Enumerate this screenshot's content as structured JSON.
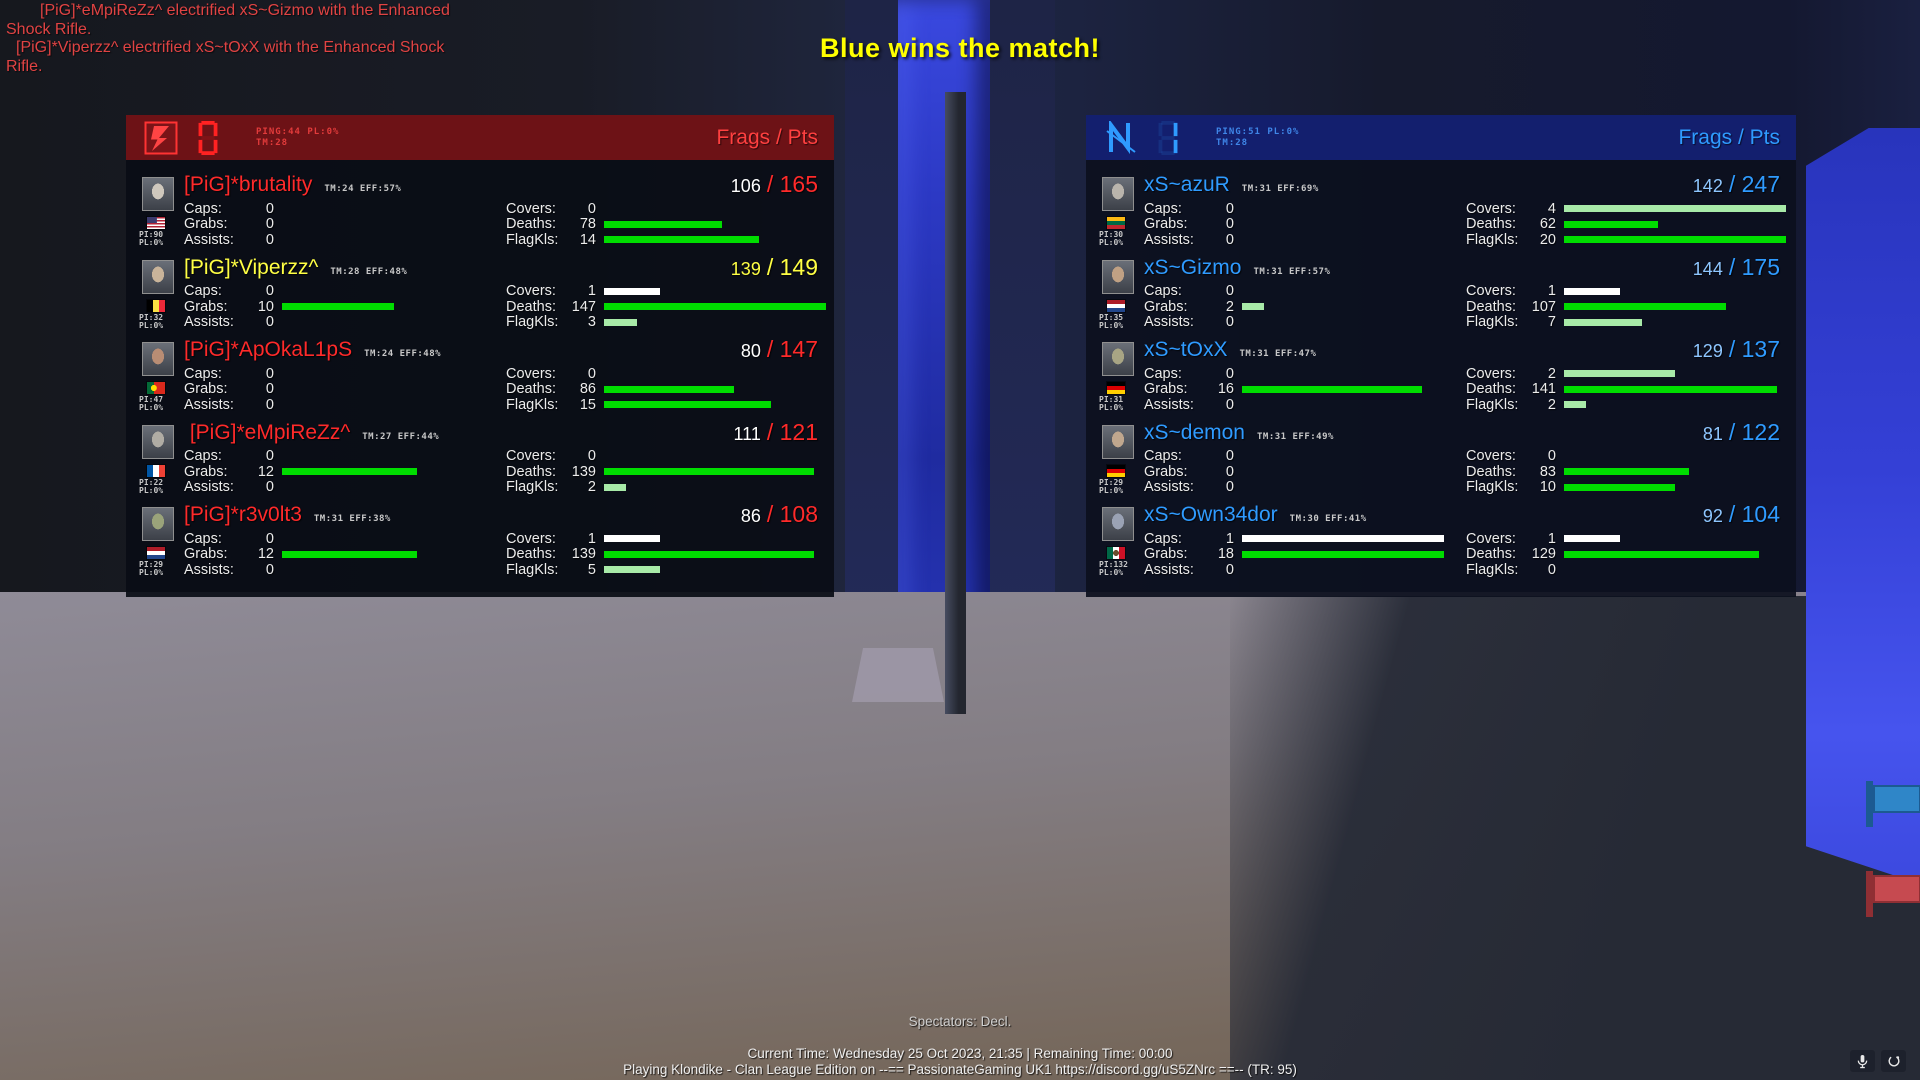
{
  "killfeed": {
    "line1": "[PiG]*eMpiReZz^ electrified xS~Gizmo with the Enhanced Shock Rifle.",
    "line2": "[PiG]*Viperzz^ electrified xS~tOxX with the Enhanced Shock Rifle."
  },
  "announcement": "Blue wins the match!",
  "labels": {
    "frags_pts": "Frags / Pts",
    "caps": "Caps:",
    "grabs": "Grabs:",
    "assists": "Assists:",
    "covers": "Covers:",
    "deaths": "Deaths:",
    "flagkls": "FlagKls:"
  },
  "stat_maxes": {
    "caps": 1,
    "grabs": 18,
    "assists": 1,
    "covers": 4,
    "deaths": 147,
    "flagkls": 20
  },
  "bar_colors": {
    "low": "#ffffff",
    "mid": "#a8eaa8",
    "high": "#00dd00"
  },
  "teams": [
    {
      "id": "red",
      "accent": "#ff2222",
      "digit": "0",
      "ping": "PING:44 PL:0%",
      "tm": "TM:28",
      "players": [
        {
          "name": "[PiG]*brutality",
          "name_color": "#ff2a2a",
          "tm_eff": "TM:24 EFF:57%",
          "pi": "PI:90",
          "pl": "PL:0%",
          "flag": "us",
          "avatar_tint": "#cfc8bd",
          "frags": "106",
          "pts": "165",
          "frags_color": "#ffffff",
          "pts_color": "#ff2a2a",
          "caps": 0,
          "grabs": 0,
          "assists": 0,
          "covers": 0,
          "deaths": 78,
          "flagkls": 14
        },
        {
          "name": "[PiG]*Viperzz^",
          "name_color": "#ffff44",
          "tm_eff": "TM:28 EFF:48%",
          "pi": "PI:32",
          "pl": "PL:0%",
          "flag": "be",
          "avatar_tint": "#c9b49a",
          "frags": "139",
          "pts": "149",
          "frags_color": "#ffff44",
          "pts_color": "#ffff44",
          "caps": 0,
          "grabs": 10,
          "assists": 0,
          "covers": 1,
          "deaths": 147,
          "flagkls": 3
        },
        {
          "name": "[PiG]*ApOkaL1pS",
          "name_color": "#ff2a2a",
          "tm_eff": "TM:24 EFF:48%",
          "pi": "PI:47",
          "pl": "PL:0%",
          "flag": "pt",
          "avatar_tint": "#b98d74",
          "frags": "80",
          "pts": "147",
          "frags_color": "#ffffff",
          "pts_color": "#ff2a2a",
          "caps": 0,
          "grabs": 0,
          "assists": 0,
          "covers": 0,
          "deaths": 86,
          "flagkls": 15
        },
        {
          "name": " [PiG]*eMpiReZz^",
          "name_color": "#ff2a2a",
          "tm_eff": "TM:27 EFF:44%",
          "pi": "PI:22",
          "pl": "PL:0%",
          "flag": "fr",
          "avatar_tint": "#b0aca4",
          "frags": "111",
          "pts": "121",
          "frags_color": "#ffffff",
          "pts_color": "#ff2a2a",
          "caps": 0,
          "grabs": 12,
          "assists": 0,
          "covers": 0,
          "deaths": 139,
          "flagkls": 2
        },
        {
          "name": "[PiG]*r3v0lt3",
          "name_color": "#ff2a2a",
          "tm_eff": "TM:31 EFF:38%",
          "pi": "PI:29",
          "pl": "PL:0%",
          "flag": "nl",
          "avatar_tint": "#9aa37a",
          "frags": "86",
          "pts": "108",
          "frags_color": "#ffffff",
          "pts_color": "#ff2a2a",
          "caps": 0,
          "grabs": 12,
          "assists": 0,
          "covers": 1,
          "deaths": 139,
          "flagkls": 5
        }
      ]
    },
    {
      "id": "blue",
      "accent": "#2f9bff",
      "digit": "1",
      "ping": "PING:51 PL:0%",
      "tm": "TM:28",
      "players": [
        {
          "name": "xS~azuR",
          "name_color": "#2f9bff",
          "tm_eff": "TM:31 EFF:69%",
          "pi": "PI:30",
          "pl": "PL:0%",
          "flag": "lt",
          "avatar_tint": "#b9b4ac",
          "frags": "142",
          "pts": "247",
          "frags_color": "#8ec6ff",
          "pts_color": "#2f9bff",
          "caps": 0,
          "grabs": 0,
          "assists": 0,
          "covers": 4,
          "deaths": 62,
          "flagkls": 20
        },
        {
          "name": "xS~Gizmo",
          "name_color": "#2f9bff",
          "tm_eff": "TM:31 EFF:57%",
          "pi": "PI:35",
          "pl": "PL:0%",
          "flag": "nl",
          "avatar_tint": "#c0a184",
          "frags": "144",
          "pts": "175",
          "frags_color": "#8ec6ff",
          "pts_color": "#2f9bff",
          "caps": 0,
          "grabs": 2,
          "assists": 0,
          "covers": 1,
          "deaths": 107,
          "flagkls": 7
        },
        {
          "name": "xS~tOxX",
          "name_color": "#2f9bff",
          "tm_eff": "TM:31 EFF:47%",
          "pi": "PI:31",
          "pl": "PL:0%",
          "flag": "de",
          "avatar_tint": "#a8a584",
          "frags": "129",
          "pts": "137",
          "frags_color": "#8ec6ff",
          "pts_color": "#2f9bff",
          "caps": 0,
          "grabs": 16,
          "assists": 0,
          "covers": 2,
          "deaths": 141,
          "flagkls": 2
        },
        {
          "name": "xS~demon",
          "name_color": "#2f9bff",
          "tm_eff": "TM:31 EFF:49%",
          "pi": "PI:29",
          "pl": "PL:0%",
          "flag": "de",
          "avatar_tint": "#c0a78e",
          "frags": "81",
          "pts": "122",
          "frags_color": "#8ec6ff",
          "pts_color": "#2f9bff",
          "caps": 0,
          "grabs": 0,
          "assists": 0,
          "covers": 0,
          "deaths": 83,
          "flagkls": 10
        },
        {
          "name": "xS~Own34dor",
          "name_color": "#2f9bff",
          "tm_eff": "TM:30 EFF:41%",
          "pi": "PI:132",
          "pl": "PL:0%",
          "flag": "mx",
          "avatar_tint": "#9aa2b4",
          "frags": "92",
          "pts": "104",
          "frags_color": "#8ec6ff",
          "pts_color": "#2f9bff",
          "caps": 1,
          "grabs": 18,
          "assists": 0,
          "covers": 1,
          "deaths": 129,
          "flagkls": 0
        }
      ]
    }
  ],
  "footer": {
    "spectators": "Spectators: Decl.",
    "time_line": "Current Time: Wednesday 25 Oct 2023, 21:35 | Remaining Time: 00:00",
    "server_line": "Playing Klondike - Clan League Edition on --== PassionateGaming UK1 https://discord.gg/uS5ZNrc ==-- (TR: 95)"
  }
}
